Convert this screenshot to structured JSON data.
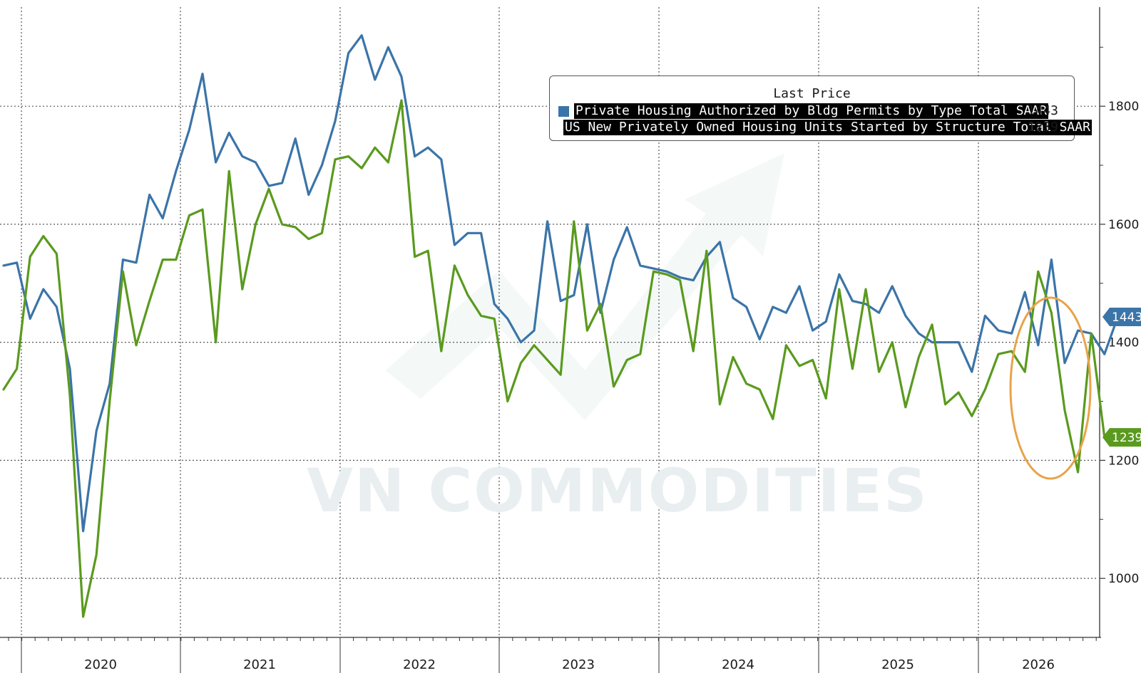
{
  "watermark_text": "VN COMMODITIES",
  "colors": {
    "permits": "#3b74a8",
    "starts": "#5a9a1e",
    "highlight": "#e8a34a",
    "grid": "#555555"
  },
  "legend": {
    "title": "Last Price",
    "items": [
      {
        "label": "Private Housing Authorized by Bldg Permits by Type Total SAAR",
        "value": "1443"
      },
      {
        "label": "US New Privately Owned Housing Units Started by Structure Total SAAR",
        "value": "1239"
      }
    ]
  },
  "chart_data": {
    "type": "line",
    "title": "",
    "xlabel": "",
    "ylabel": "",
    "x_tick_labels": [
      "2020",
      "2021",
      "2022",
      "2023",
      "2024",
      "2025",
      "2026"
    ],
    "y_ticks": [
      1000,
      1200,
      1400,
      1600,
      1800
    ],
    "ylim": [
      900,
      1980
    ],
    "y_axis_position": "right",
    "grid": true,
    "legend_position": "top-right",
    "last_value_tags": [
      "1443",
      "1239"
    ],
    "series": [
      {
        "name": "Private Housing Authorized by Bldg Permits by Type Total SAAR",
        "color": "#3b74a8",
        "values": [
          1530,
          1535,
          1440,
          1490,
          1460,
          1355,
          1080,
          1250,
          1330,
          1540,
          1535,
          1650,
          1610,
          1690,
          1760,
          1855,
          1705,
          1755,
          1715,
          1705,
          1665,
          1670,
          1745,
          1650,
          1700,
          1775,
          1890,
          1920,
          1845,
          1900,
          1850,
          1715,
          1730,
          1710,
          1565,
          1585,
          1585,
          1465,
          1440,
          1400,
          1420,
          1605,
          1470,
          1480,
          1600,
          1450,
          1540,
          1595,
          1530,
          1525,
          1520,
          1510,
          1505,
          1545,
          1570,
          1475,
          1460,
          1405,
          1460,
          1450,
          1495,
          1420,
          1435,
          1515,
          1470,
          1465,
          1450,
          1495,
          1445,
          1415,
          1400,
          1400,
          1400,
          1350,
          1445,
          1420,
          1415,
          1485,
          1395,
          1540,
          1365,
          1420,
          1415,
          1380,
          1443
        ]
      },
      {
        "name": "US New Privately Owned Housing Units Started by Structure Total SAAR",
        "color": "#5a9a1e",
        "values": [
          1320,
          1355,
          1545,
          1580,
          1550,
          1310,
          935,
          1040,
          1300,
          1520,
          1395,
          1470,
          1540,
          1540,
          1615,
          1625,
          1400,
          1690,
          1490,
          1600,
          1660,
          1600,
          1595,
          1575,
          1585,
          1710,
          1715,
          1695,
          1730,
          1705,
          1810,
          1545,
          1555,
          1385,
          1530,
          1480,
          1445,
          1440,
          1300,
          1365,
          1395,
          1370,
          1345,
          1605,
          1420,
          1465,
          1325,
          1370,
          1380,
          1520,
          1515,
          1505,
          1385,
          1555,
          1295,
          1375,
          1330,
          1320,
          1270,
          1395,
          1360,
          1370,
          1305,
          1490,
          1355,
          1490,
          1350,
          1400,
          1290,
          1375,
          1430,
          1295,
          1315,
          1275,
          1320,
          1380,
          1385,
          1350,
          1520,
          1450,
          1285,
          1180,
          1415,
          1239
        ]
      }
    ]
  }
}
